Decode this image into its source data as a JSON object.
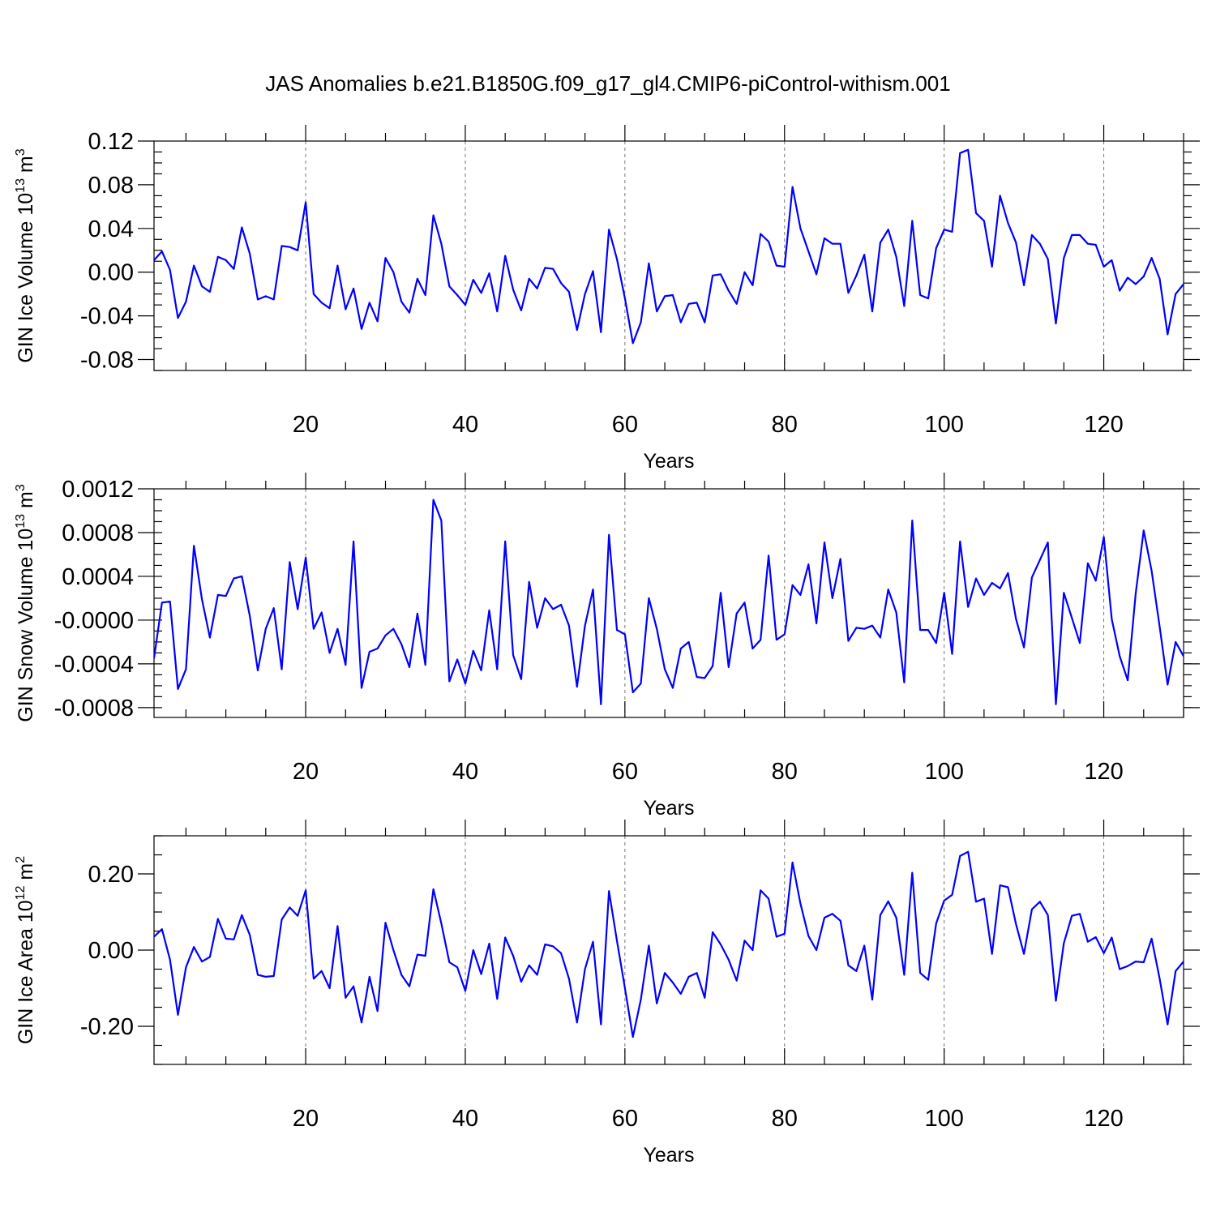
{
  "title": "JAS Anomalies b.e21.B1850G.f09_g17_gl4.CMIP6-piControl-withism.001",
  "colors": {
    "series": "#0000ff",
    "grid": "#777777",
    "axis": "#000000"
  },
  "chart_data": [
    {
      "type": "line",
      "ylabel_main": "GIN Ice Volume 10",
      "ylabel_sup1": "13",
      "ylabel_mid": " m",
      "ylabel_sup2": "3",
      "xlabel": "Years",
      "xlim": [
        1,
        130
      ],
      "ylim": [
        -0.09,
        0.12
      ],
      "xticks": [
        20,
        40,
        60,
        80,
        100,
        120
      ],
      "xtick_labels": [
        "20",
        "40",
        "60",
        "80",
        "100",
        "120"
      ],
      "yticks": [
        -0.08,
        -0.04,
        0.0,
        0.04,
        0.08,
        0.12
      ],
      "ytick_labels": [
        "-0.08",
        "-0.04",
        "0.00",
        "0.04",
        "0.08",
        "0.12"
      ],
      "grid": "vertical dashed at major x ticks",
      "values": [
        0.011,
        0.019,
        0.002,
        -0.042,
        -0.027,
        0.006,
        -0.013,
        -0.018,
        0.014,
        0.011,
        0.003,
        0.041,
        0.017,
        -0.025,
        -0.022,
        -0.025,
        0.024,
        0.023,
        0.02,
        0.064,
        -0.02,
        -0.028,
        -0.033,
        0.006,
        -0.034,
        -0.015,
        -0.052,
        -0.028,
        -0.045,
        0.013,
        0.0,
        -0.027,
        -0.037,
        -0.006,
        -0.021,
        0.052,
        0.026,
        -0.013,
        -0.021,
        -0.03,
        -0.007,
        -0.019,
        -0.001,
        -0.036,
        0.015,
        -0.016,
        -0.035,
        -0.006,
        -0.015,
        0.004,
        0.003,
        -0.01,
        -0.018,
        -0.053,
        -0.02,
        0.001,
        -0.055,
        0.039,
        0.012,
        -0.024,
        -0.065,
        -0.046,
        0.008,
        -0.036,
        -0.022,
        -0.021,
        -0.046,
        -0.029,
        -0.028,
        -0.046,
        -0.003,
        -0.002,
        -0.017,
        -0.029,
        0.0,
        -0.012,
        0.035,
        0.028,
        0.006,
        0.005,
        0.078,
        0.04,
        0.019,
        -0.002,
        0.031,
        0.026,
        0.026,
        -0.019,
        -0.003,
        0.016,
        -0.036,
        0.027,
        0.039,
        0.014,
        -0.031,
        0.047,
        -0.021,
        -0.024,
        0.022,
        0.039,
        0.037,
        0.109,
        0.112,
        0.054,
        0.047,
        0.005,
        0.07,
        0.045,
        0.027,
        -0.012,
        0.034,
        0.026,
        0.012,
        -0.047,
        0.013,
        0.034,
        0.034,
        0.026,
        0.025,
        0.005,
        0.011,
        -0.017,
        -0.005,
        -0.011,
        -0.004,
        0.013,
        -0.006,
        -0.057,
        -0.02,
        -0.011
      ]
    },
    {
      "type": "line",
      "ylabel_main": "GIN Snow Volume 10",
      "ylabel_sup1": "13",
      "ylabel_mid": " m",
      "ylabel_sup2": "3",
      "xlabel": "Years",
      "xlim": [
        1,
        130
      ],
      "ylim": [
        -0.00089,
        0.0012
      ],
      "xticks": [
        20,
        40,
        60,
        80,
        100,
        120
      ],
      "xtick_labels": [
        "20",
        "40",
        "60",
        "80",
        "100",
        "120"
      ],
      "yticks": [
        -0.0008,
        -0.0004,
        0.0,
        0.0004,
        0.0008,
        0.0012
      ],
      "ytick_labels": [
        "-0.0008",
        "-0.0004",
        "-0.0000",
        "0.0004",
        "0.0008",
        "0.0012"
      ],
      "grid": "vertical dashed at major x ticks",
      "values": [
        -0.00035,
        0.00016,
        0.00017,
        -0.00063,
        -0.00045,
        0.00068,
        0.00019,
        -0.00016,
        0.00023,
        0.00022,
        0.00038,
        0.0004,
        4e-05,
        -0.00046,
        -8e-05,
        0.00011,
        -0.00045,
        0.00053,
        0.0001,
        0.00057,
        -8e-05,
        7e-05,
        -0.0003,
        -8e-05,
        -0.00041,
        0.00072,
        -0.00062,
        -0.00029,
        -0.00026,
        -0.00014,
        -8e-05,
        -0.00022,
        -0.00043,
        6e-05,
        -0.00041,
        0.0011,
        0.00091,
        -0.00056,
        -0.00036,
        -0.00058,
        -0.00028,
        -0.00046,
        9e-05,
        -0.00045,
        0.00072,
        -0.00032,
        -0.00054,
        0.00035,
        -7e-05,
        0.0002,
        0.0001,
        0.00014,
        -5e-05,
        -0.00061,
        -5e-05,
        0.00028,
        -0.00077,
        0.00078,
        -9e-05,
        -0.00013,
        -0.00066,
        -0.00058,
        0.0002,
        -8e-05,
        -0.00045,
        -0.00062,
        -0.00026,
        -0.0002,
        -0.00052,
        -0.00053,
        -0.00042,
        0.00025,
        -0.00043,
        6e-05,
        0.00016,
        -0.00026,
        -0.00018,
        0.00059,
        -0.00018,
        -0.00013,
        0.00032,
        0.00023,
        0.00051,
        -3e-05,
        0.00071,
        0.0002,
        0.00056,
        -0.00019,
        -7e-05,
        -8e-05,
        -5e-05,
        -0.00016,
        0.00028,
        7e-05,
        -0.00057,
        0.00091,
        -9e-05,
        -9e-05,
        -0.00021,
        0.00025,
        -0.00031,
        0.00072,
        0.00012,
        0.00038,
        0.00023,
        0.00034,
        0.00029,
        0.00043,
        1e-05,
        -0.00025,
        0.00039,
        0.00055,
        0.00071,
        -0.00077,
        0.00025,
        2e-05,
        -0.00021,
        0.00052,
        0.00036,
        0.00076,
        1e-05,
        -0.00033,
        -0.00055,
        0.00024,
        0.00082,
        0.00045,
        -6e-05,
        -0.00059,
        -0.0002,
        -0.00033
      ]
    },
    {
      "type": "line",
      "ylabel_main": "GIN Ice Area 10",
      "ylabel_sup1": "12",
      "ylabel_mid": " m",
      "ylabel_sup2": "2",
      "xlabel": "Years",
      "xlim": [
        1,
        130
      ],
      "ylim": [
        -0.3,
        0.3
      ],
      "xticks": [
        20,
        40,
        60,
        80,
        100,
        120
      ],
      "xtick_labels": [
        "20",
        "40",
        "60",
        "80",
        "100",
        "120"
      ],
      "yticks": [
        -0.2,
        0.0,
        0.2
      ],
      "ytick_labels": [
        "-0.20",
        "0.00",
        "0.20"
      ],
      "grid": "vertical dashed at major x ticks",
      "values": [
        0.035,
        0.055,
        -0.025,
        -0.17,
        -0.045,
        0.008,
        -0.03,
        -0.018,
        0.082,
        0.03,
        0.028,
        0.092,
        0.04,
        -0.065,
        -0.07,
        -0.068,
        0.08,
        0.112,
        0.09,
        0.157,
        -0.075,
        -0.055,
        -0.1,
        0.063,
        -0.125,
        -0.095,
        -0.19,
        -0.07,
        -0.16,
        0.072,
        0.0,
        -0.065,
        -0.095,
        -0.012,
        -0.015,
        0.16,
        0.07,
        -0.032,
        -0.045,
        -0.107,
        0.0,
        -0.063,
        0.017,
        -0.128,
        0.033,
        -0.015,
        -0.083,
        -0.04,
        -0.065,
        0.015,
        0.01,
        -0.008,
        -0.075,
        -0.19,
        -0.05,
        0.022,
        -0.195,
        0.155,
        0.025,
        -0.1,
        -0.228,
        -0.13,
        0.012,
        -0.14,
        -0.06,
        -0.085,
        -0.115,
        -0.07,
        -0.06,
        -0.125,
        0.047,
        0.015,
        -0.025,
        -0.08,
        0.025,
        0.0,
        0.157,
        0.135,
        0.035,
        0.043,
        0.23,
        0.122,
        0.037,
        0.0,
        0.085,
        0.095,
        0.077,
        -0.04,
        -0.055,
        0.012,
        -0.13,
        0.092,
        0.128,
        0.085,
        -0.065,
        0.203,
        -0.06,
        -0.078,
        0.07,
        0.13,
        0.145,
        0.247,
        0.258,
        0.127,
        0.135,
        -0.01,
        0.17,
        0.165,
        0.068,
        -0.01,
        0.107,
        0.127,
        0.092,
        -0.133,
        0.018,
        0.09,
        0.095,
        0.022,
        0.034,
        -0.008,
        0.033,
        -0.05,
        -0.042,
        -0.03,
        -0.032,
        0.03,
        -0.075,
        -0.195,
        -0.055,
        -0.03
      ]
    }
  ]
}
